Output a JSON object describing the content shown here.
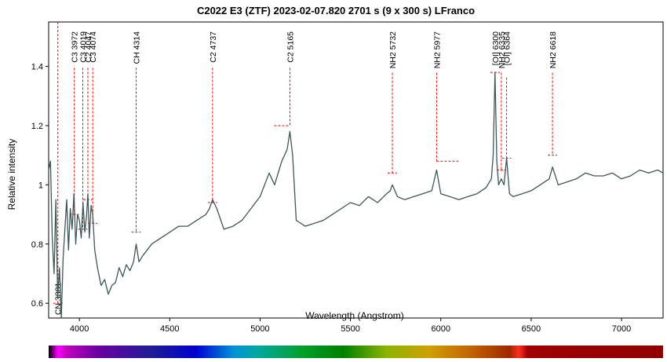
{
  "chart_data": {
    "type": "line",
    "title": "C2022 E3 (ZTF)   2023-02-07.820   2701 s (9 x 300 s)   LFranco",
    "xlabel": "Wavelength (Angstrom)",
    "ylabel": "Relative intensity",
    "xlim": [
      3830,
      7230
    ],
    "ylim": [
      0.55,
      1.55
    ],
    "x_ticks": [
      4000,
      4500,
      5000,
      5500,
      6000,
      6500,
      7000
    ],
    "y_ticks": [
      0.6,
      0.8,
      1,
      1.2,
      1.4
    ],
    "y_tick_labels": [
      "0.6",
      "0.8",
      "1",
      "1.2",
      "1.4"
    ],
    "grid": false,
    "spectrum_bar": true,
    "series": [
      {
        "color": "#3e5656",
        "x": [
          3830,
          3840,
          3850,
          3860,
          3870,
          3880,
          3890,
          3900,
          3910,
          3920,
          3930,
          3940,
          3950,
          3960,
          3970,
          3980,
          3990,
          4000,
          4010,
          4020,
          4030,
          4040,
          4047,
          4055,
          4065,
          4074,
          4085,
          4100,
          4120,
          4140,
          4160,
          4180,
          4200,
          4220,
          4240,
          4260,
          4280,
          4300,
          4314,
          4330,
          4350,
          4400,
          4450,
          4500,
          4550,
          4600,
          4650,
          4700,
          4720,
          4737,
          4760,
          4800,
          4850,
          4900,
          4950,
          5000,
          5050,
          5080,
          5120,
          5150,
          5165,
          5180,
          5200,
          5250,
          5300,
          5350,
          5400,
          5450,
          5500,
          5550,
          5600,
          5650,
          5700,
          5720,
          5732,
          5760,
          5800,
          5850,
          5900,
          5950,
          5977,
          6000,
          6050,
          6100,
          6150,
          6200,
          6250,
          6280,
          6290,
          6300,
          6310,
          6320,
          6335,
          6350,
          6364,
          6380,
          6400,
          6450,
          6500,
          6550,
          6600,
          6618,
          6650,
          6700,
          6750,
          6800,
          6850,
          6900,
          6950,
          7000,
          7050,
          7100,
          7150,
          7200,
          7230
        ],
        "y": [
          1.05,
          1.08,
          0.82,
          0.7,
          0.95,
          0.62,
          0.72,
          0.55,
          0.75,
          0.85,
          0.95,
          0.78,
          0.92,
          0.85,
          0.97,
          0.8,
          0.9,
          0.88,
          0.82,
          0.94,
          0.84,
          0.9,
          0.97,
          0.82,
          0.93,
          0.9,
          0.78,
          0.72,
          0.66,
          0.68,
          0.63,
          0.66,
          0.67,
          0.72,
          0.69,
          0.73,
          0.71,
          0.74,
          0.8,
          0.74,
          0.76,
          0.8,
          0.82,
          0.84,
          0.86,
          0.86,
          0.88,
          0.9,
          0.92,
          0.95,
          0.92,
          0.85,
          0.86,
          0.88,
          0.92,
          0.96,
          1.04,
          1.0,
          1.08,
          1.12,
          1.18,
          1.1,
          0.88,
          0.86,
          0.87,
          0.88,
          0.9,
          0.92,
          0.94,
          0.93,
          0.96,
          0.94,
          0.97,
          0.98,
          1.0,
          0.96,
          0.95,
          0.96,
          0.97,
          0.98,
          1.05,
          0.97,
          0.96,
          0.95,
          0.96,
          0.97,
          0.99,
          1.02,
          1.1,
          1.38,
          1.08,
          1.0,
          1.02,
          1.0,
          1.09,
          0.97,
          0.96,
          0.97,
          0.98,
          1.0,
          1.02,
          1.06,
          1.0,
          1.01,
          1.02,
          1.04,
          1.03,
          1.03,
          1.04,
          1.02,
          1.03,
          1.05,
          1.04,
          1.05,
          1.04
        ]
      }
    ],
    "emission_lines": [
      {
        "label": "CN 3881",
        "wavelength": 3881,
        "intensity": 0.6
      },
      {
        "label": "C3 3972",
        "wavelength": 3972,
        "intensity": 0.9
      },
      {
        "label": "C3 4019",
        "wavelength": 4019,
        "intensity": 0.85
      },
      {
        "label": "C2 4047",
        "wavelength": 4047,
        "intensity": 0.95
      },
      {
        "label": "C3 4074",
        "wavelength": 4074,
        "intensity": 0.87
      },
      {
        "label": "CH 4314",
        "wavelength": 4314,
        "intensity": 0.84
      },
      {
        "label": "C2 4737",
        "wavelength": 4737,
        "intensity": 0.94
      },
      {
        "label": "C2 5165",
        "wavelength": 5165,
        "intensity": 1.2
      },
      {
        "label": "NH2 5732",
        "wavelength": 5732,
        "intensity": 1.04
      },
      {
        "label": "NH2 5977",
        "wavelength": 5977,
        "intensity": 1.08
      },
      {
        "label": "[OI] 6300",
        "wavelength": 6300,
        "intensity": 1.38
      },
      {
        "label": "NH2 6335",
        "wavelength": 6335,
        "intensity": 1.05
      },
      {
        "label": "[OI] 6364",
        "wavelength": 6364,
        "intensity": 1.09
      },
      {
        "label": "NH2 6618",
        "wavelength": 6618,
        "intensity": 1.1
      }
    ],
    "marker_color": "#ff0000"
  }
}
